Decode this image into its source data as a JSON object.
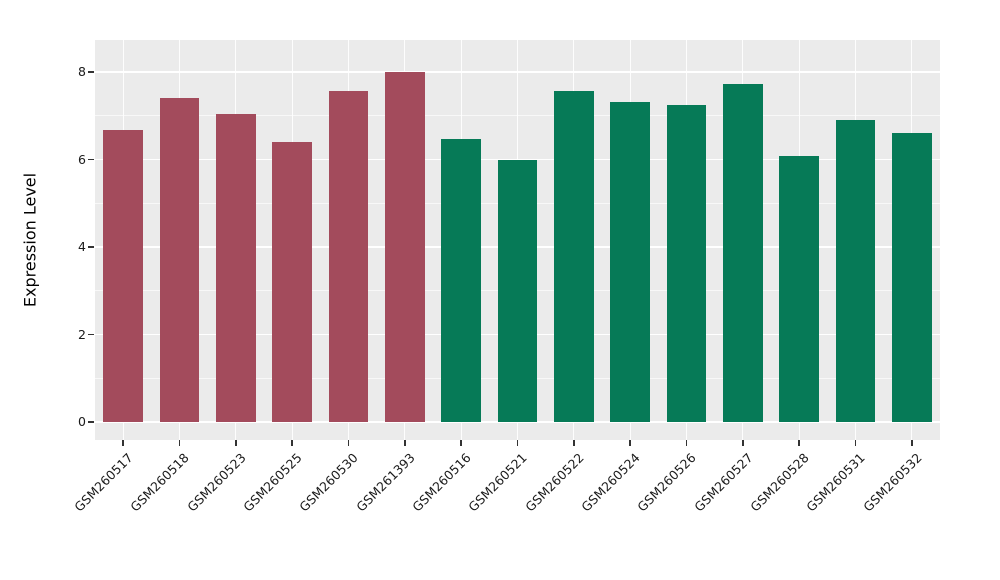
{
  "chart_data": {
    "type": "bar",
    "title": "",
    "xlabel": "",
    "ylabel": "Expression Level",
    "ylim": [
      0,
      8
    ],
    "yticks": [
      0,
      2,
      4,
      6,
      8
    ],
    "yticks_minor": [
      1,
      3,
      5,
      7
    ],
    "grid": true,
    "legend": false,
    "panel_bg": "#ebebeb",
    "grid_color": "#ffffff",
    "series": [
      {
        "name": "group-red",
        "color": "#a34b5c",
        "categories": [
          "GSM260517",
          "GSM260518",
          "GSM260523",
          "GSM260525",
          "GSM260530",
          "GSM261393"
        ],
        "values": [
          6.68,
          7.4,
          7.05,
          6.4,
          7.57,
          8.0
        ]
      },
      {
        "name": "group-green",
        "color": "#067a57",
        "categories": [
          "GSM260516",
          "GSM260521",
          "GSM260522",
          "GSM260524",
          "GSM260526",
          "GSM260527",
          "GSM260528",
          "GSM260531",
          "GSM260532"
        ],
        "values": [
          6.48,
          5.98,
          7.57,
          7.32,
          7.25,
          7.72,
          6.08,
          6.9,
          6.6
        ]
      }
    ]
  }
}
